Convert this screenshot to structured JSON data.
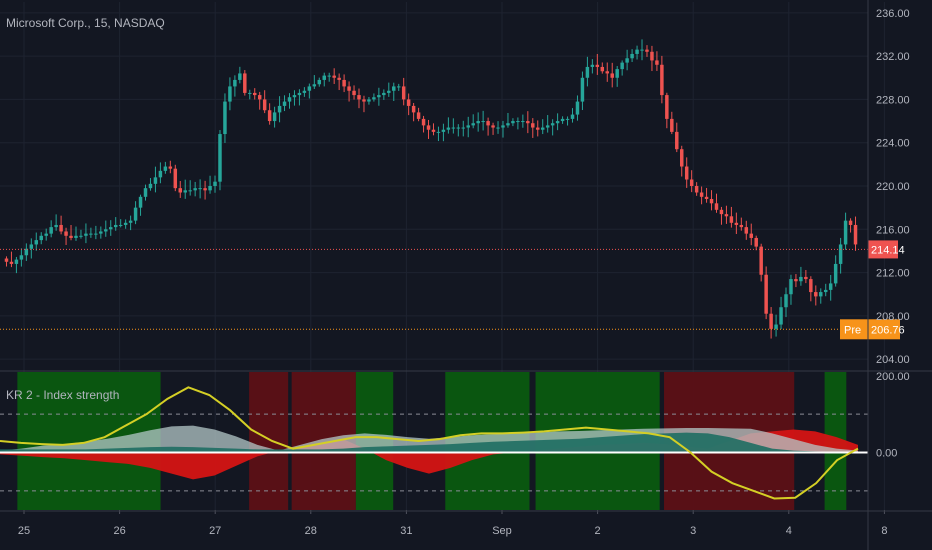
{
  "chart": {
    "title": "Microsoft Corp., 15, NASDAQ",
    "indicator_title": "KR 2 - Index strength",
    "colors": {
      "background": "#131722",
      "grid": "#1e2330",
      "up": "#26a69a",
      "down": "#ef5350",
      "yellow": "#d4cf25",
      "green_zone": "#0a5a10",
      "red_zone": "#5c1016",
      "red_area": "#d41414",
      "teal_area": "#1f6e63",
      "light_area": "#b4c8c8",
      "last_price": "#ef5350",
      "premarket": "#f7931a"
    }
  },
  "chart_data": [
    {
      "type": "candlestick",
      "name": "price",
      "ylim": [
        203,
        237
      ],
      "yticks": [
        204,
        208,
        212,
        216,
        220,
        224,
        228,
        232,
        236
      ],
      "ytick_labels": [
        "204.00",
        "208.00",
        "212.00",
        "216.00",
        "220.00",
        "224.00",
        "228.00",
        "232.00",
        "236.00"
      ],
      "x_labels": [
        "25",
        "26",
        "27",
        "28",
        "31",
        "Sep",
        "2",
        "3",
        "4",
        "8"
      ],
      "last_price": 214.14,
      "last_price_label": "214.14",
      "premarket_price": 206.76,
      "premarket_tag": "Pre",
      "premarket_label": "206.76",
      "closes": [
        213,
        212.8,
        213.2,
        213.6,
        214.2,
        214.6,
        215,
        215.4,
        215.6,
        216.2,
        216.4,
        215.8,
        215.4,
        215.2,
        215.4,
        215.4,
        215.6,
        215.6,
        215.6,
        215.8,
        216,
        216.2,
        216.4,
        216.4,
        216.6,
        216.8,
        218,
        219,
        219.8,
        220.2,
        220.8,
        221.4,
        221.8,
        221.6,
        219.8,
        219.4,
        219.6,
        219.6,
        219.8,
        219.8,
        219.6,
        220,
        220.4,
        224.8,
        227.8,
        229.2,
        229.8,
        230.4,
        228.6,
        228.6,
        228.4,
        228,
        227,
        226,
        226.8,
        227.4,
        227.8,
        228.2,
        228.4,
        228.6,
        228.8,
        229.2,
        229.4,
        229.8,
        230.2,
        230.2,
        230,
        229.8,
        229.2,
        228.8,
        228.4,
        228,
        227.8,
        228,
        228.2,
        228.4,
        228.6,
        228.8,
        229.2,
        229.2,
        228,
        227.4,
        226.8,
        226.2,
        225.6,
        225.2,
        225,
        225,
        225.2,
        225.4,
        225.4,
        225.4,
        225.4,
        225.6,
        225.8,
        226,
        226,
        225.6,
        225.4,
        225.4,
        225.6,
        225.8,
        226,
        226,
        226,
        225.8,
        225.4,
        225.2,
        225.4,
        225.6,
        225.8,
        226,
        226.2,
        226.2,
        226.6,
        227.8,
        230,
        231,
        231.2,
        231,
        230.6,
        230.4,
        230,
        230.8,
        231.4,
        231.8,
        232.2,
        232.6,
        232.6,
        232.4,
        231.6,
        231.2,
        228.4,
        226.2,
        225,
        223.4,
        221.8,
        220.6,
        220,
        219.4,
        219,
        218.8,
        218.4,
        217.8,
        217.4,
        217.2,
        216.6,
        216.4,
        216.2,
        215.6,
        215.2,
        214.4,
        211.8,
        208.2,
        206.8,
        207.2,
        208.8,
        210,
        211.4,
        211.2,
        211.6,
        211.4,
        210.2,
        209.8,
        210.2,
        210.4,
        211,
        212.8,
        214.6,
        216.8,
        216.4,
        214.6
      ]
    },
    {
      "type": "area",
      "name": "indicator",
      "ylim": [
        -150,
        210
      ],
      "yticks": [
        200,
        0
      ],
      "ytick_labels": [
        "200.00",
        "0.00"
      ],
      "dashed_levels": [
        100,
        -100
      ],
      "zones": [
        {
          "kind": "green",
          "from": 0.02,
          "to": 0.185
        },
        {
          "kind": "red",
          "from": 0.287,
          "to": 0.332
        },
        {
          "kind": "red",
          "from": 0.336,
          "to": 0.41
        },
        {
          "kind": "green",
          "from": 0.41,
          "to": 0.453
        },
        {
          "kind": "green",
          "from": 0.513,
          "to": 0.61
        },
        {
          "kind": "green",
          "from": 0.617,
          "to": 0.76
        },
        {
          "kind": "red",
          "from": 0.765,
          "to": 0.915
        },
        {
          "kind": "green",
          "from": 0.95,
          "to": 0.975
        }
      ],
      "positive_area": [
        5,
        10,
        18,
        22,
        28,
        36,
        46,
        58,
        68,
        70,
        60,
        42,
        20,
        5,
        20,
        35,
        45,
        50,
        46,
        40,
        36,
        40,
        45,
        48,
        50,
        52,
        55,
        56,
        58,
        60,
        62,
        63,
        64,
        64,
        63,
        62,
        50,
        35,
        20,
        10,
        5
      ],
      "teal_area": [
        8,
        8,
        8,
        8,
        8,
        10,
        12,
        14,
        15,
        14,
        12,
        10,
        8,
        8,
        8,
        8,
        10,
        14,
        16,
        18,
        20,
        22,
        25,
        28,
        30,
        32,
        34,
        36,
        40,
        44,
        48,
        50,
        52,
        50,
        40,
        25,
        10,
        5,
        3,
        2,
        2
      ],
      "negative_area": [
        -5,
        -8,
        -12,
        -15,
        -20,
        -25,
        -30,
        -40,
        -55,
        -70,
        -60,
        -35,
        -10,
        5,
        15,
        25,
        35,
        10,
        -20,
        -40,
        -55,
        -40,
        -20,
        -5,
        0,
        5,
        10,
        15,
        20,
        22,
        25,
        22,
        15,
        10,
        30,
        50,
        55,
        60,
        55,
        40,
        20
      ],
      "signal_line": [
        30,
        25,
        22,
        20,
        25,
        40,
        70,
        100,
        140,
        170,
        150,
        110,
        60,
        30,
        10,
        20,
        30,
        40,
        40,
        35,
        30,
        35,
        45,
        50,
        50,
        52,
        55,
        60,
        65,
        60,
        55,
        50,
        40,
        0,
        -50,
        -80,
        -100,
        -120,
        -118,
        -80,
        -20,
        10
      ]
    }
  ]
}
